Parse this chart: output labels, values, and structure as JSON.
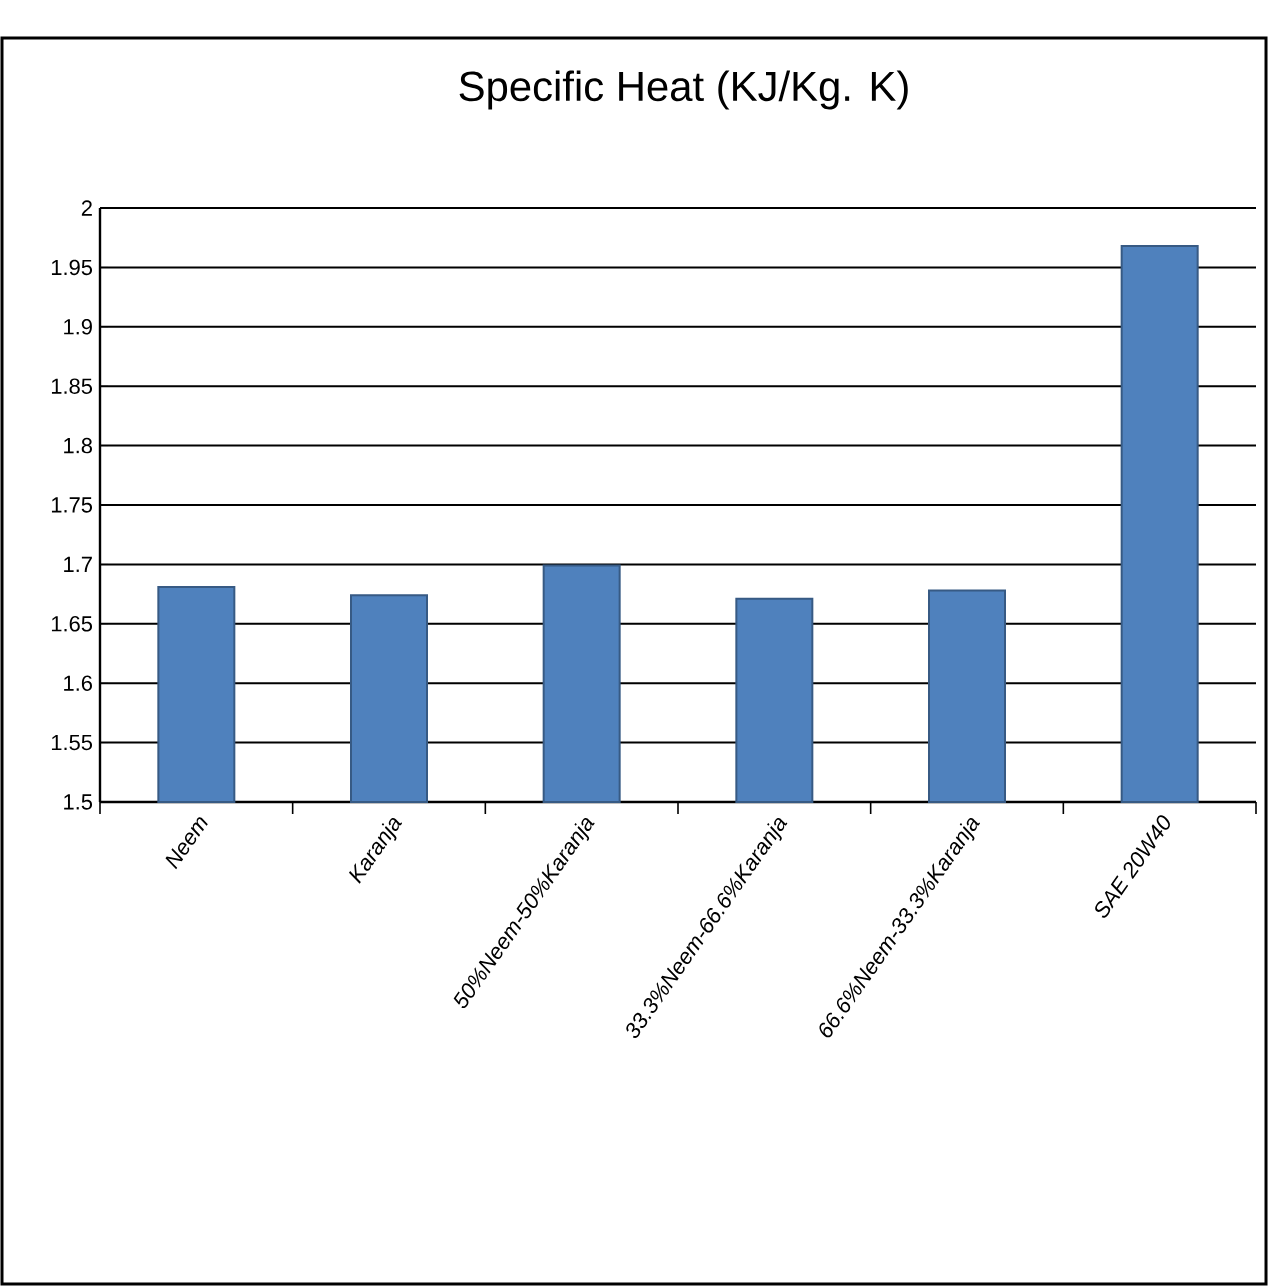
{
  "chart_data": {
    "type": "bar",
    "title": "Specific  Heat (KJ/Kg. K)",
    "categories": [
      "Neem",
      "Karanja",
      "50%Neem-50%Karanja",
      "33.3%Neem-66.6%Karanja",
      "66.6%Neem-33.3%Karanja",
      "SAE 20W40"
    ],
    "values": [
      1.681,
      1.674,
      1.699,
      1.671,
      1.678,
      1.968
    ],
    "color": "#4f81bd",
    "ylim": [
      1.5,
      2
    ],
    "yticks": [
      1.5,
      1.55,
      1.6,
      1.65,
      1.7,
      1.75,
      1.8,
      1.85,
      1.9,
      1.95,
      2
    ],
    "grid": "y"
  }
}
